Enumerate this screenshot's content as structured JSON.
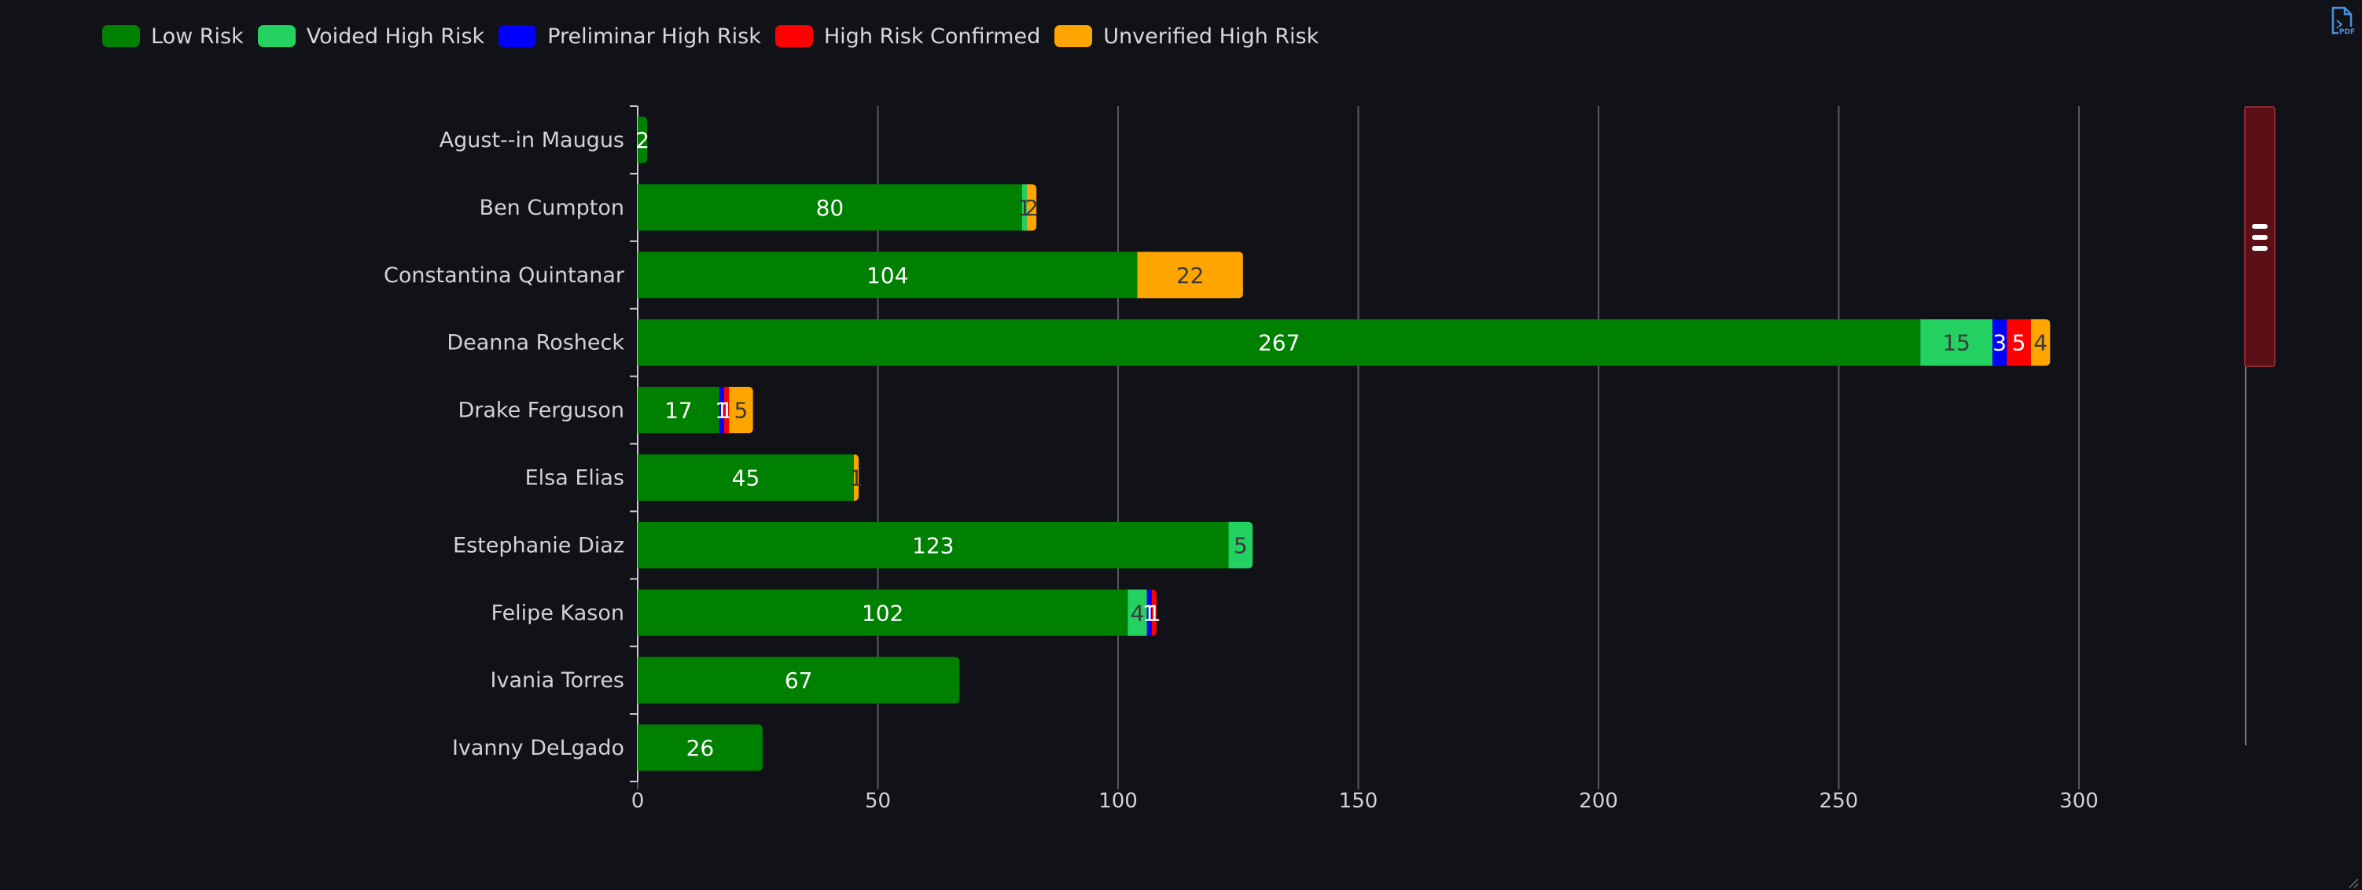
{
  "colors": {
    "background": "#111217",
    "grid": "#555862",
    "axis_text": "#d0d2d8",
    "low_risk": "#008000",
    "voided_high_risk": "#23d160",
    "preliminar_high_risk": "#0000ff",
    "high_risk_confirmed": "#ff0000",
    "unverified_high_risk": "#ffa500",
    "scrollbar_thumb": "#5a1016",
    "scrollbar_border": "#8a2a30"
  },
  "icons": {
    "export": "pdf-export-icon"
  },
  "chart_data": {
    "type": "bar",
    "orientation": "horizontal",
    "stacked": true,
    "categories": [
      "Agust--in Maugus",
      "Ben Cumpton",
      "Constantina Quintanar",
      "Deanna Rosheck",
      "Drake Ferguson",
      "Elsa Elias",
      "Estephanie Diaz",
      "Felipe Kason",
      "Ivania Torres",
      "Ivanny DeLgado"
    ],
    "series": [
      {
        "name": "Low Risk",
        "color": "#008000",
        "label_color": "#ffffff",
        "values": [
          2,
          80,
          104,
          267,
          17,
          45,
          123,
          102,
          67,
          26
        ]
      },
      {
        "name": "Voided High Risk",
        "color": "#23d160",
        "label_color": "#3a3a3a",
        "values": [
          0,
          1,
          0,
          15,
          0,
          0,
          5,
          4,
          0,
          0
        ]
      },
      {
        "name": "Preliminar High Risk",
        "color": "#0000ff",
        "label_color": "#ffffff",
        "values": [
          0,
          0,
          0,
          3,
          1,
          0,
          0,
          1,
          0,
          0
        ]
      },
      {
        "name": "High Risk Confirmed",
        "color": "#ff0000",
        "label_color": "#ffffff",
        "values": [
          0,
          0,
          0,
          5,
          1,
          0,
          0,
          1,
          0,
          0
        ]
      },
      {
        "name": "Unverified High Risk",
        "color": "#ffa500",
        "label_color": "#3a3a3a",
        "values": [
          0,
          2,
          22,
          4,
          5,
          1,
          0,
          0,
          0,
          0
        ]
      }
    ],
    "xlim": [
      0,
      300
    ],
    "x_ticks": [
      "0",
      "50",
      "100",
      "150",
      "200",
      "250",
      "300"
    ],
    "grid": true,
    "legend_position": "top-left",
    "title": "",
    "xlabel": "",
    "ylabel": ""
  }
}
